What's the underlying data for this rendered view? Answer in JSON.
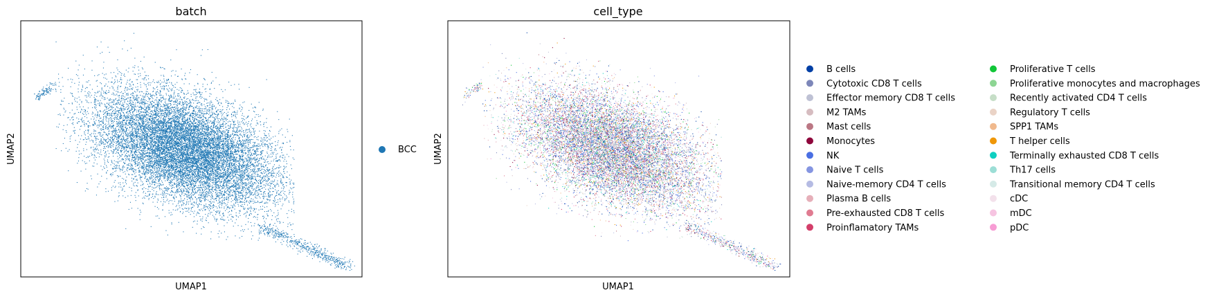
{
  "chart_data": [
    {
      "type": "scatter",
      "title": "batch",
      "xlabel": "UMAP1",
      "ylabel": "UMAP2",
      "x_ticks": "none",
      "y_ticks": "none",
      "grid": false,
      "legend_placement": "right",
      "series": [
        {
          "name": "BCC",
          "color": "#1f77b4",
          "approx_points": 30000
        }
      ]
    },
    {
      "type": "scatter",
      "title": "cell_type",
      "xlabel": "UMAP1",
      "ylabel": "UMAP2",
      "x_ticks": "none",
      "y_ticks": "none",
      "grid": false,
      "legend_placement": "right",
      "legend_columns": 2,
      "series": [
        {
          "name": "B cells",
          "color": "#023fa5"
        },
        {
          "name": "Cytotoxic CD8 T cells",
          "color": "#7d87b9"
        },
        {
          "name": "Effector memory CD8 T cells",
          "color": "#bec1d4"
        },
        {
          "name": "M2 TAMs",
          "color": "#d6bcc0"
        },
        {
          "name": "Mast cells",
          "color": "#bb7784"
        },
        {
          "name": "Monocytes",
          "color": "#8e063b"
        },
        {
          "name": "NK",
          "color": "#4a6fe3"
        },
        {
          "name": "Naive T cells",
          "color": "#8595e1"
        },
        {
          "name": "Naive-memory CD4 T cells",
          "color": "#b5bbe3"
        },
        {
          "name": "Plasma B cells",
          "color": "#e6afb9"
        },
        {
          "name": "Pre-exhausted CD8 T cells",
          "color": "#e07b91"
        },
        {
          "name": "Proinflamatory TAMs",
          "color": "#d33f6a"
        },
        {
          "name": "Proliferative T cells",
          "color": "#11c638"
        },
        {
          "name": "Proliferative monocytes and macrophages",
          "color": "#8dd593"
        },
        {
          "name": "Recently activated CD4 T cells",
          "color": "#c6dec7"
        },
        {
          "name": "Regulatory T cells",
          "color": "#ead3c6"
        },
        {
          "name": "SPP1 TAMs",
          "color": "#f0b98d"
        },
        {
          "name": "T helper cells",
          "color": "#ef9708"
        },
        {
          "name": "Terminally exhausted CD8 T cells",
          "color": "#0fcfc0"
        },
        {
          "name": "Th17 cells",
          "color": "#9cded6"
        },
        {
          "name": "Transitional memory CD4 T cells",
          "color": "#d5eae7"
        },
        {
          "name": "cDC",
          "color": "#f3e1eb"
        },
        {
          "name": "mDC",
          "color": "#f6c4e1"
        },
        {
          "name": "pDC",
          "color": "#f79cd4"
        }
      ]
    }
  ]
}
